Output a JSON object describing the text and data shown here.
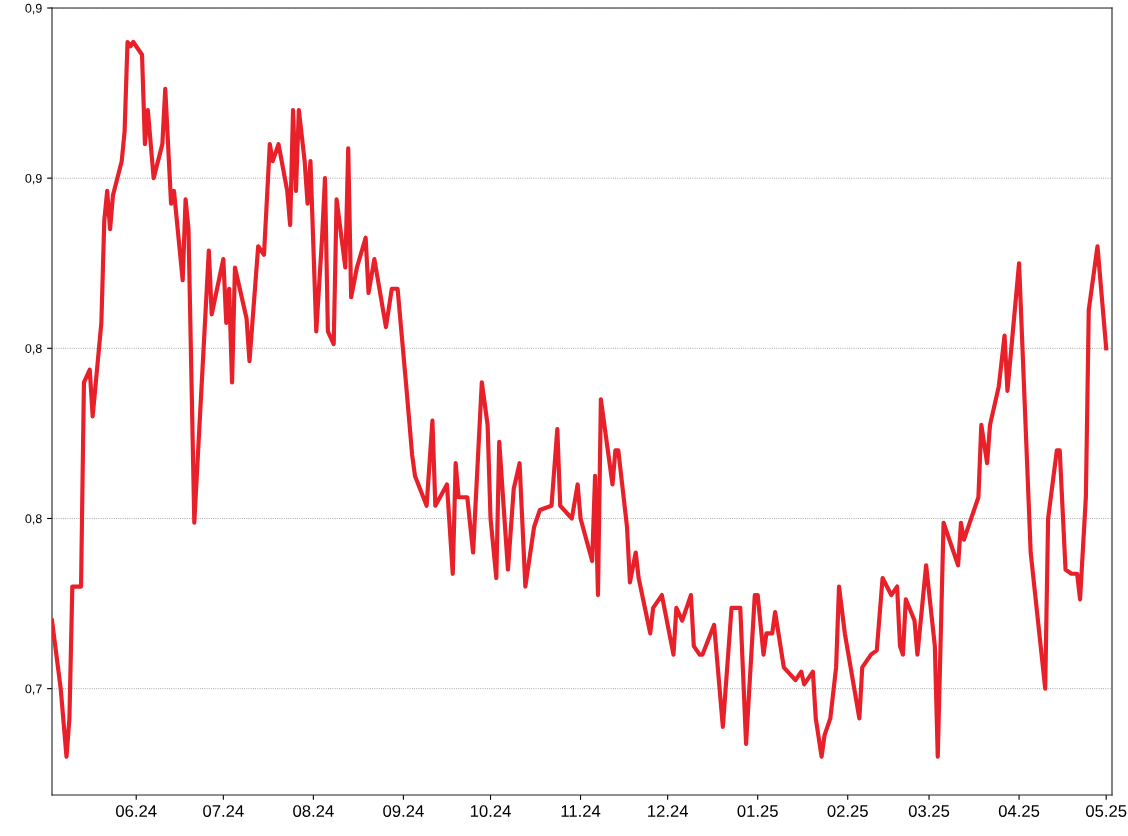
{
  "chart_data": {
    "type": "line",
    "grid": "y",
    "marker": "none",
    "line_style": "solid",
    "xlim": [
      "2024-05-03",
      "2025-05-03"
    ],
    "xticks": [
      {
        "value": "2024-06-01",
        "label": "06.24"
      },
      {
        "value": "2024-07-01",
        "label": "07.24"
      },
      {
        "value": "2024-08-01",
        "label": "08.24"
      },
      {
        "value": "2024-09-01",
        "label": "09.24"
      },
      {
        "value": "2024-10-01",
        "label": "10.24"
      },
      {
        "value": "2024-11-01",
        "label": "11.24"
      },
      {
        "value": "2024-12-01",
        "label": "12.24"
      },
      {
        "value": "2025-01-01",
        "label": "01.25"
      },
      {
        "value": "2025-02-01",
        "label": "02.25"
      },
      {
        "value": "2025-03-01",
        "label": "03.25"
      },
      {
        "value": "2025-04-01",
        "label": "04.25"
      },
      {
        "value": "2025-05-01",
        "label": "05.25"
      }
    ],
    "ylim": [
      0.715,
      0.9
    ],
    "yticks": [
      {
        "value": 0.9,
        "label": "0,9"
      },
      {
        "value": 0.86,
        "label": "0,9"
      },
      {
        "value": 0.82,
        "label": "0,8"
      },
      {
        "value": 0.78,
        "label": "0,8"
      },
      {
        "value": 0.74,
        "label": "0,7"
      }
    ],
    "x": [
      "2024-05-03",
      "2024-05-06",
      "2024-05-08",
      "2024-05-09",
      "2024-05-10",
      "2024-05-13",
      "2024-05-14",
      "2024-05-16",
      "2024-05-17",
      "2024-05-20",
      "2024-05-21",
      "2024-05-22",
      "2024-05-23",
      "2024-05-24",
      "2024-05-27",
      "2024-05-28",
      "2024-05-29",
      "2024-05-30",
      "2024-05-31",
      "2024-06-03",
      "2024-06-04",
      "2024-06-05",
      "2024-06-07",
      "2024-06-10",
      "2024-06-11",
      "2024-06-13",
      "2024-06-14",
      "2024-06-17",
      "2024-06-18",
      "2024-06-19",
      "2024-06-21",
      "2024-06-26",
      "2024-06-27",
      "2024-07-01",
      "2024-07-02",
      "2024-07-03",
      "2024-07-04",
      "2024-07-05",
      "2024-07-09",
      "2024-07-10",
      "2024-07-11",
      "2024-07-13",
      "2024-07-15",
      "2024-07-17",
      "2024-07-18",
      "2024-07-20",
      "2024-07-23",
      "2024-07-24",
      "2024-07-25",
      "2024-07-26",
      "2024-07-27",
      "2024-07-29",
      "2024-07-30",
      "2024-07-31",
      "2024-08-02",
      "2024-08-04",
      "2024-08-05",
      "2024-08-06",
      "2024-08-08",
      "2024-08-09",
      "2024-08-12",
      "2024-08-13",
      "2024-08-14",
      "2024-08-16",
      "2024-08-19",
      "2024-08-20",
      "2024-08-22",
      "2024-08-26",
      "2024-08-28",
      "2024-08-30",
      "2024-09-02",
      "2024-09-04",
      "2024-09-05",
      "2024-09-09",
      "2024-09-11",
      "2024-09-12",
      "2024-09-16",
      "2024-09-18",
      "2024-09-19",
      "2024-09-20",
      "2024-09-23",
      "2024-09-25",
      "2024-09-28",
      "2024-09-30",
      "2024-10-01",
      "2024-10-03",
      "2024-10-04",
      "2024-10-07",
      "2024-10-09",
      "2024-10-11",
      "2024-10-13",
      "2024-10-16",
      "2024-10-18",
      "2024-10-22",
      "2024-10-24",
      "2024-10-25",
      "2024-10-29",
      "2024-10-31",
      "2024-11-01",
      "2024-11-05",
      "2024-11-06",
      "2024-11-07",
      "2024-11-08",
      "2024-11-12",
      "2024-11-13",
      "2024-11-14",
      "2024-11-17",
      "2024-11-18",
      "2024-11-20",
      "2024-11-21",
      "2024-11-25",
      "2024-11-26",
      "2024-11-29",
      "2024-12-03",
      "2024-12-04",
      "2024-12-06",
      "2024-12-09",
      "2024-12-10",
      "2024-12-12",
      "2024-12-13",
      "2024-12-17",
      "2024-12-18",
      "2024-12-20",
      "2024-12-23",
      "2024-12-26",
      "2024-12-28",
      "2024-12-31",
      "2025-01-01",
      "2025-01-03",
      "2025-01-04",
      "2025-01-06",
      "2025-01-07",
      "2025-01-10",
      "2025-01-14",
      "2025-01-16",
      "2025-01-17",
      "2025-01-20",
      "2025-01-21",
      "2025-01-23",
      "2025-01-24",
      "2025-01-26",
      "2025-01-28",
      "2025-01-29",
      "2025-01-31",
      "2025-02-05",
      "2025-02-06",
      "2025-02-09",
      "2025-02-11",
      "2025-02-13",
      "2025-02-16",
      "2025-02-18",
      "2025-02-19",
      "2025-02-20",
      "2025-02-21",
      "2025-02-24",
      "2025-02-25",
      "2025-02-28",
      "2025-03-03",
      "2025-03-04",
      "2025-03-06",
      "2025-03-11",
      "2025-03-12",
      "2025-03-13",
      "2025-03-18",
      "2025-03-19",
      "2025-03-21",
      "2025-03-22",
      "2025-03-25",
      "2025-03-27",
      "2025-03-28",
      "2025-04-01",
      "2025-04-05",
      "2025-04-10",
      "2025-04-11",
      "2025-04-14",
      "2025-04-15",
      "2025-04-17",
      "2025-04-19",
      "2025-04-21",
      "2025-04-22",
      "2025-04-24",
      "2025-04-25",
      "2025-04-28",
      "2025-05-01"
    ],
    "series": [
      {
        "color": "#e8202a",
        "values": [
          0.756,
          0.74,
          0.724,
          0.733,
          0.764,
          0.764,
          0.812,
          0.815,
          0.804,
          0.826,
          0.85,
          0.857,
          0.848,
          0.856,
          0.864,
          0.871,
          0.892,
          0.891,
          0.892,
          0.889,
          0.868,
          0.876,
          0.86,
          0.868,
          0.881,
          0.854,
          0.857,
          0.836,
          0.855,
          0.848,
          0.779,
          0.843,
          0.828,
          0.841,
          0.826,
          0.834,
          0.812,
          0.839,
          0.827,
          0.817,
          0.826,
          0.844,
          0.842,
          0.868,
          0.864,
          0.868,
          0.857,
          0.849,
          0.876,
          0.857,
          0.876,
          0.864,
          0.854,
          0.864,
          0.824,
          0.846,
          0.86,
          0.824,
          0.821,
          0.855,
          0.839,
          0.867,
          0.832,
          0.839,
          0.846,
          0.833,
          0.841,
          0.825,
          0.834,
          0.834,
          0.811,
          0.795,
          0.79,
          0.783,
          0.803,
          0.783,
          0.788,
          0.767,
          0.793,
          0.785,
          0.785,
          0.772,
          0.812,
          0.802,
          0.78,
          0.766,
          0.798,
          0.768,
          0.787,
          0.793,
          0.764,
          0.778,
          0.782,
          0.783,
          0.801,
          0.783,
          0.78,
          0.788,
          0.78,
          0.77,
          0.79,
          0.762,
          0.808,
          0.788,
          0.796,
          0.796,
          0.778,
          0.765,
          0.772,
          0.766,
          0.753,
          0.759,
          0.762,
          0.748,
          0.759,
          0.756,
          0.762,
          0.75,
          0.748,
          0.748,
          0.755,
          0.747,
          0.731,
          0.759,
          0.759,
          0.727,
          0.762,
          0.762,
          0.748,
          0.753,
          0.753,
          0.758,
          0.745,
          0.742,
          0.744,
          0.741,
          0.744,
          0.733,
          0.724,
          0.729,
          0.733,
          0.745,
          0.764,
          0.753,
          0.733,
          0.745,
          0.748,
          0.749,
          0.766,
          0.762,
          0.764,
          0.75,
          0.748,
          0.761,
          0.756,
          0.748,
          0.769,
          0.75,
          0.724,
          0.779,
          0.769,
          0.779,
          0.775,
          0.785,
          0.802,
          0.793,
          0.802,
          0.811,
          0.823,
          0.81,
          0.84,
          0.772,
          0.74,
          0.78,
          0.796,
          0.796,
          0.768,
          0.767,
          0.767,
          0.761,
          0.785,
          0.829,
          0.844,
          0.82
        ]
      }
    ]
  }
}
